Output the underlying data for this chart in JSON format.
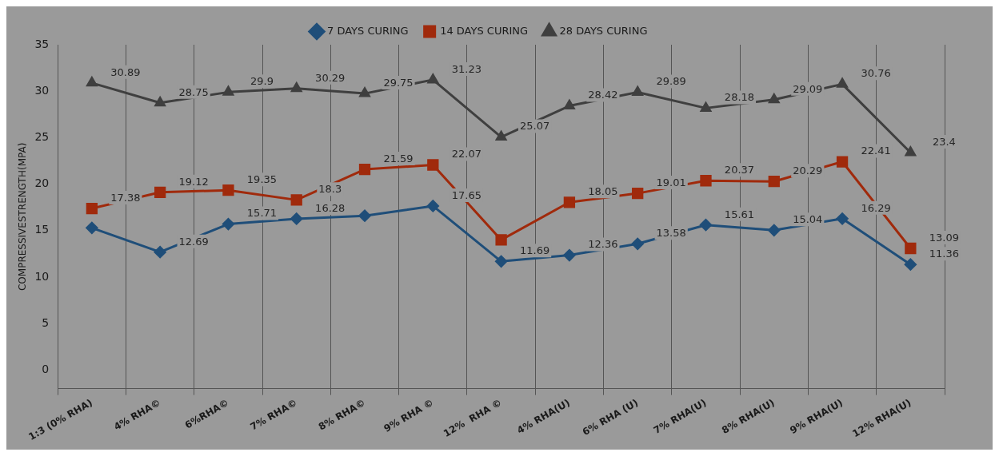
{
  "chart_data": {
    "type": "line",
    "categories": [
      "1:3 (0% RHA)",
      "4% RHA©",
      "6%RHA©",
      "7% RHA©",
      "8% RHA©",
      "9% RHA ©",
      "12%  RHA ©",
      "4% RHA(U)",
      "6% RHA (U)",
      "7% RHA(U)",
      "8% RHA(U)",
      "9% RHA(U)",
      "12% RHA(U)"
    ],
    "series": [
      {
        "name": "7 DAYS CURING",
        "color": "#1f4e79",
        "marker": "diamond",
        "values": [
          15.3,
          12.69,
          15.71,
          16.28,
          16.6,
          17.65,
          11.69,
          12.36,
          13.58,
          15.61,
          15.04,
          16.29,
          11.36
        ],
        "value_labels": [
          null,
          "12.69",
          "15.71",
          "16.28",
          null,
          "17.65",
          "11.69",
          "12.36",
          "13.58",
          "15.61",
          "15.04",
          "16.29",
          "11.36"
        ]
      },
      {
        "name": "14 DAYS CURING",
        "color": "#a02a0c",
        "marker": "square",
        "values": [
          17.38,
          19.12,
          19.35,
          18.3,
          21.59,
          22.07,
          14.0,
          18.05,
          19.01,
          20.37,
          20.29,
          22.41,
          13.09
        ],
        "value_labels": [
          "17.38",
          "19.12",
          "19.35",
          "18.3",
          "21.59",
          "22.07",
          null,
          "18.05",
          "19.01",
          "20.37",
          "20.29",
          "22.41",
          "13.09"
        ]
      },
      {
        "name": "28 DAYS CURING",
        "color": "#3f3f3f",
        "marker": "triangle",
        "values": [
          30.89,
          28.75,
          29.9,
          30.29,
          29.75,
          31.23,
          25.07,
          28.42,
          29.89,
          28.18,
          29.09,
          30.76,
          23.4
        ],
        "value_labels": [
          "30.89",
          "28.75",
          "29.9",
          "30.29",
          "29.75",
          "31.23",
          "25.07",
          "28.42",
          "29.89",
          "28.18",
          "29.09",
          "30.76",
          "23.4"
        ]
      }
    ],
    "ylabel": "COMPRESSIVESTRENGTH(MPA)",
    "ylim": [
      -2,
      35
    ],
    "yticks": [
      0,
      5,
      10,
      15,
      20,
      25,
      30,
      35
    ],
    "grid": "x",
    "legend": "top"
  }
}
